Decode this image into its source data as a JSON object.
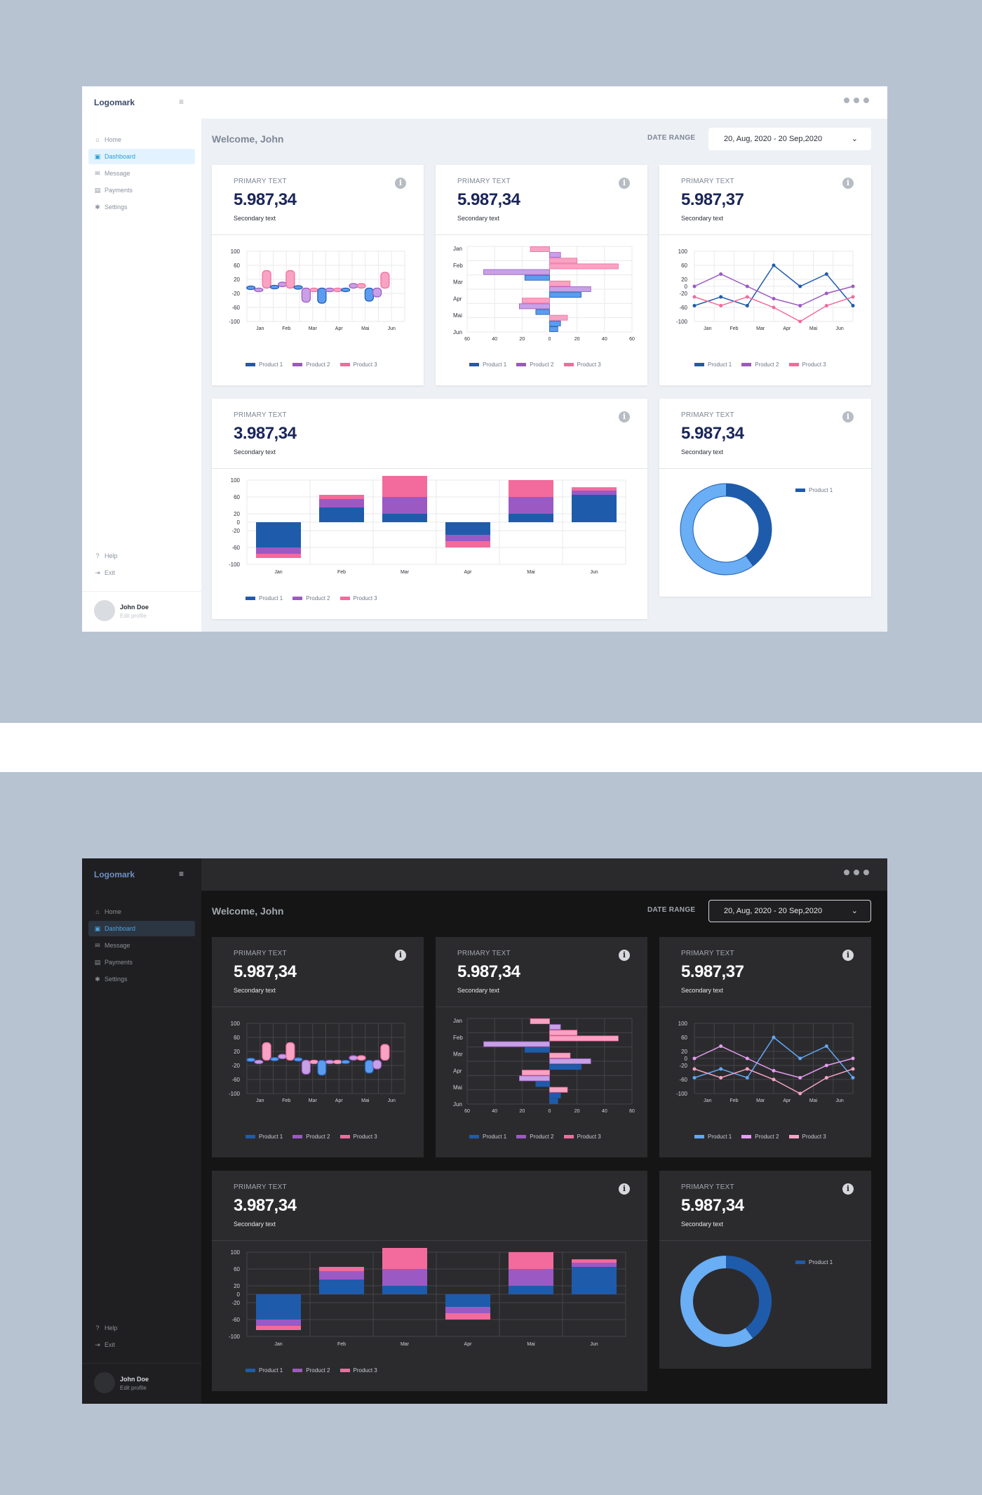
{
  "app": {
    "logo": "Logomark",
    "menu_icon": "menu-icon",
    "nav": [
      {
        "label": "Home",
        "icon": "home-icon",
        "glyph": "⌂"
      },
      {
        "label": "Dashboard",
        "icon": "dashboard-icon",
        "glyph": "▣"
      },
      {
        "label": "Message",
        "icon": "mail-icon",
        "glyph": "✉"
      },
      {
        "label": "Payments",
        "icon": "payments-icon",
        "glyph": "▤"
      },
      {
        "label": "Settings",
        "icon": "gear-icon",
        "glyph": "✱"
      }
    ],
    "active_nav": "Dashboard",
    "bottom_nav": [
      {
        "label": "Help",
        "icon": "help-icon",
        "glyph": "?"
      },
      {
        "label": "Exit",
        "icon": "exit-icon",
        "glyph": "⇥"
      }
    ],
    "profile": {
      "name": "John Doe",
      "edit": "Edit profile"
    },
    "welcome": "Welcome, John",
    "date_range": {
      "label": "DATE RANGE",
      "value": "20, Aug, 2020 - 20 Sep,2020"
    }
  },
  "cards": [
    {
      "primary": "PRIMARY TEXT",
      "value": "5.987,34",
      "secondary": "Secondary text"
    },
    {
      "primary": "PRIMARY TEXT",
      "value": "5.987,34",
      "secondary": "Secondary text"
    },
    {
      "primary": "PRIMARY TEXT",
      "value": "5.987,37",
      "secondary": "Secondary text"
    },
    {
      "primary": "PRIMARY TEXT",
      "value": "3.987,34",
      "secondary": "Secondary text"
    },
    {
      "primary": "PRIMARY TEXT",
      "value": "5.987,34",
      "secondary": "Secondary text"
    }
  ],
  "colors": {
    "product1": "#1f5bab",
    "product2": "#9b59c4",
    "product3": "#f26b9c",
    "candle1": "#5b9cf0",
    "candle2": "#c8a0e6",
    "candle3": "#f8a3c3",
    "donut_light": "#6aaef5",
    "dark_product1": "#62a8f5",
    "dark_product2": "#e79cf0",
    "dark_product3": "#f7a4c4"
  },
  "chart_data": [
    {
      "type": "bar",
      "subtype": "candlestick",
      "categories": [
        "Jan",
        "Feb",
        "Mar",
        "Apr",
        "Mai",
        "Jun"
      ],
      "yticks": [
        "100",
        "60",
        "20",
        "-20",
        "-60",
        "-100"
      ],
      "ylim": [
        -100,
        100
      ],
      "legend": [
        "Product 1",
        "Product 2",
        "Product 3"
      ],
      "candles": [
        {
          "x": 0.15,
          "low": -1,
          "high": 1,
          "series": 0
        },
        {
          "x": 0.45,
          "low": -15,
          "high": -5,
          "series": 1
        },
        {
          "x": 0.75,
          "low": -5,
          "high": 45,
          "series": 2
        },
        {
          "x": 1.05,
          "low": -3,
          "high": 3,
          "series": 0
        },
        {
          "x": 1.35,
          "low": -1,
          "high": 12,
          "series": 1
        },
        {
          "x": 1.65,
          "low": -5,
          "high": 45,
          "series": 2
        },
        {
          "x": 1.95,
          "low": -2,
          "high": 2,
          "series": 0
        },
        {
          "x": 2.25,
          "low": -45,
          "high": -5,
          "series": 1
        },
        {
          "x": 2.55,
          "low": -12,
          "high": -5,
          "series": 2
        },
        {
          "x": 2.85,
          "low": -48,
          "high": -5,
          "series": 0
        },
        {
          "x": 3.15,
          "low": -12,
          "high": -5,
          "series": 1
        },
        {
          "x": 3.45,
          "low": -14,
          "high": -5,
          "series": 2
        },
        {
          "x": 3.75,
          "low": -14,
          "high": -5,
          "series": 0
        },
        {
          "x": 4.05,
          "low": -5,
          "high": 8,
          "series": 1
        },
        {
          "x": 4.35,
          "low": -5,
          "high": 8,
          "series": 2
        },
        {
          "x": 4.65,
          "low": -42,
          "high": -5,
          "series": 0
        },
        {
          "x": 4.95,
          "low": -30,
          "high": -5,
          "series": 1
        },
        {
          "x": 5.25,
          "low": -5,
          "high": 40,
          "series": 2
        }
      ]
    },
    {
      "type": "bar",
      "orientation": "horizontal",
      "categories": [
        "Jan",
        "Feb",
        "Mar",
        "Apr",
        "Mai",
        "Jun"
      ],
      "xticks": [
        "60",
        "40",
        "20",
        "0",
        "20",
        "40",
        "60"
      ],
      "xlim": [
        -60,
        60
      ],
      "legend": [
        "Product 1",
        "Product 2",
        "Product 3"
      ],
      "bars": [
        [
          -14,
          0,
          2
        ],
        [
          8,
          0,
          1
        ],
        [
          20,
          0,
          2
        ],
        [
          50,
          0,
          2
        ],
        [
          -48,
          0,
          1
        ],
        [
          -18,
          0,
          0
        ],
        [
          15,
          0,
          2
        ],
        [
          30,
          0,
          1
        ],
        [
          23,
          0,
          0
        ],
        [
          -20,
          0,
          2
        ],
        [
          -22,
          0,
          1
        ],
        [
          -10,
          0,
          0
        ],
        [
          13,
          0,
          2
        ],
        [
          8,
          0,
          0
        ],
        [
          6,
          0,
          0
        ]
      ]
    },
    {
      "type": "line",
      "categories": [
        "Jan",
        "Feb",
        "Mar",
        "Apr",
        "Mai",
        "Jun"
      ],
      "yticks": [
        "100",
        "60",
        "20",
        "0",
        "-20",
        "-60",
        "-100"
      ],
      "ylim": [
        -100,
        100
      ],
      "legend": [
        "Product 1",
        "Product 2",
        "Product 3"
      ],
      "series": [
        {
          "name": "Product 1",
          "x": [
            0,
            1,
            2,
            3,
            4,
            5,
            6
          ],
          "values": [
            -55,
            -30,
            -55,
            60,
            0,
            35,
            -55
          ]
        },
        {
          "name": "Product 2",
          "x": [
            0,
            1,
            2,
            3,
            4,
            5,
            6
          ],
          "values": [
            0,
            35,
            0,
            -35,
            -55,
            -20,
            0
          ]
        },
        {
          "name": "Product 3",
          "x": [
            0,
            1,
            2,
            3,
            4,
            5,
            6
          ],
          "values": [
            -30,
            -55,
            -30,
            -60,
            -100,
            -55,
            -30
          ]
        }
      ]
    },
    {
      "type": "bar",
      "stacked": true,
      "categories": [
        "Jan",
        "Feb",
        "Mar",
        "Apr",
        "Mai",
        "Jun"
      ],
      "yticks": [
        "100",
        "60",
        "20",
        "0",
        "-20",
        "-60",
        "-100"
      ],
      "ylim": [
        -100,
        100
      ],
      "legend": [
        "Product 1",
        "Product 2",
        "Product 3"
      ],
      "series": [
        {
          "name": "Product 1",
          "values": [
            -60,
            35,
            20,
            -30,
            20,
            65
          ]
        },
        {
          "name": "Product 2",
          "values": [
            -15,
            20,
            40,
            -15,
            40,
            10
          ]
        },
        {
          "name": "Product 3",
          "values": [
            -10,
            10,
            50,
            -15,
            40,
            8
          ]
        }
      ]
    },
    {
      "type": "pie",
      "subtype": "donut",
      "legend": [
        "Product 1"
      ],
      "slices": [
        {
          "name": "Product 1",
          "value": 40
        },
        {
          "value": 60
        }
      ]
    }
  ]
}
